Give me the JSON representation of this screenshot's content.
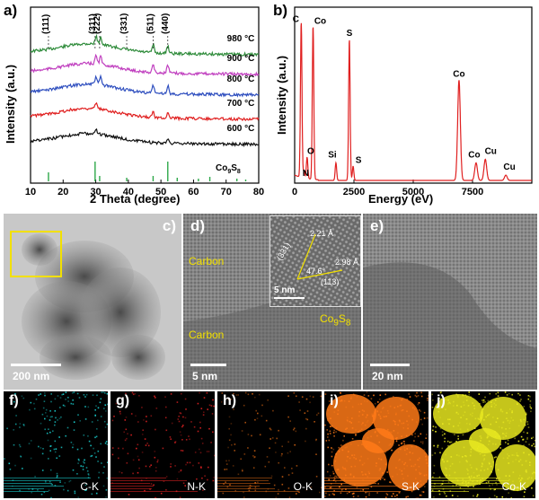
{
  "panels": {
    "a": {
      "label": "a)",
      "xlabel": "2 Theta (degree)",
      "ylabel": "Intensity (a.u.)",
      "xticks": [
        "10",
        "20",
        "30",
        "40",
        "50",
        "60",
        "70",
        "80"
      ],
      "peaks": [
        "(111)",
        "(311)",
        "(222)",
        "(331)",
        "(511)",
        "(440)"
      ],
      "temps": [
        "980 °C",
        "900 °C",
        "800 °C",
        "700 °C",
        "600 °C"
      ],
      "reference": "Co",
      "reference_sub1": "9",
      "reference_mid": "S",
      "reference_sub2": "8",
      "colors": {
        "980": "#2e8b3a",
        "900": "#c03fbf",
        "800": "#2f4fbf",
        "700": "#e02020",
        "600": "#111111",
        "ref": "#2ea84a"
      }
    },
    "b": {
      "label": "b)",
      "xlabel": "Energy (eV)",
      "ylabel": "Intensity (a.u.)",
      "xticks": [
        "0",
        "2500",
        "5000",
        "7500"
      ],
      "elements": [
        "C",
        "Co",
        "O",
        "N",
        "Si",
        "S",
        "S",
        "Co",
        "Co",
        "Cu",
        "Cu"
      ],
      "color": "#e02020"
    },
    "c": {
      "label": "c)",
      "scale": "200 nm"
    },
    "d": {
      "label": "d)",
      "scale": "5 nm",
      "inset_scale": "5 nm",
      "carbon1": "Carbon",
      "carbon2": "Carbon",
      "d1": "2.21 Å",
      "d2": "2.98 Å",
      "angle": "47.6°",
      "plane1": "(331)",
      "plane2": "(113)",
      "phase": "Co",
      "phase_sub1": "9",
      "phase_mid": "S",
      "phase_sub2": "8"
    },
    "e": {
      "label": "e)",
      "scale": "20 nm"
    },
    "maps": [
      {
        "label": "f)",
        "element": "C-K",
        "color": "#18c8c8"
      },
      {
        "label": "g)",
        "element": "N-K",
        "color": "#d42020"
      },
      {
        "label": "h)",
        "element": "O-K",
        "color": "#c05a10"
      },
      {
        "label": "i)",
        "element": "S-K",
        "color": "#ff7a18"
      },
      {
        "label": "j)",
        "element": "Co-K",
        "color": "#e8e820"
      }
    ]
  },
  "chart_data": [
    {
      "type": "line",
      "panel": "a",
      "xlabel": "2 Theta (degree)",
      "ylabel": "Intensity (a.u.)",
      "xlim": [
        10,
        80
      ],
      "series": [
        {
          "name": "980 °C",
          "peaks_2theta": [
            30.1,
            31.5,
            47.6,
            52.1
          ]
        },
        {
          "name": "900 °C",
          "peaks_2theta": [
            30.1,
            31.5,
            47.6,
            52.1
          ]
        },
        {
          "name": "800 °C",
          "peaks_2theta": [
            30.1,
            31.5,
            47.6,
            52.1
          ]
        },
        {
          "name": "700 °C",
          "peaks_2theta": [
            30.1,
            47.6,
            52.1
          ]
        },
        {
          "name": "600 °C",
          "peaks_2theta": [
            30.1,
            52.1
          ]
        }
      ],
      "reference_lines_2theta": [
        15.5,
        29.8,
        31.2,
        39.5,
        47.6,
        52.1,
        55.0,
        61.5,
        65.0,
        73.3,
        76.0
      ]
    },
    {
      "type": "line",
      "panel": "b",
      "xlabel": "Energy (eV)",
      "ylabel": "Intensity (a.u.)",
      "xlim": [
        0,
        10000
      ],
      "peaks": [
        {
          "label": "C",
          "x": 277,
          "rel": 0.88
        },
        {
          "label": "Co",
          "x": 776,
          "rel": 0.87
        },
        {
          "label": "O",
          "x": 525,
          "rel": 0.12
        },
        {
          "label": "N",
          "x": 392,
          "rel": 0.04
        },
        {
          "label": "Si",
          "x": 1740,
          "rel": 0.1
        },
        {
          "label": "S",
          "x": 2307,
          "rel": 0.8
        },
        {
          "label": "S",
          "x": 2465,
          "rel": 0.08
        },
        {
          "label": "Co",
          "x": 6930,
          "rel": 0.57
        },
        {
          "label": "Co",
          "x": 7649,
          "rel": 0.1
        },
        {
          "label": "Cu",
          "x": 8040,
          "rel": 0.12
        },
        {
          "label": "Cu",
          "x": 8905,
          "rel": 0.03
        }
      ]
    }
  ]
}
